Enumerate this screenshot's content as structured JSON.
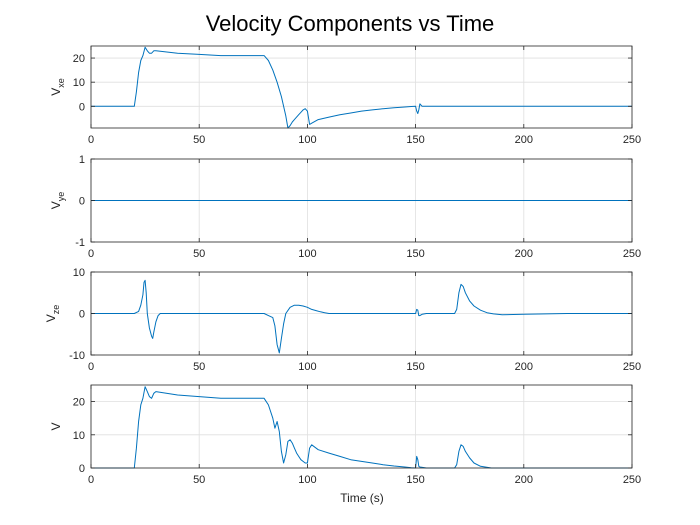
{
  "figure": {
    "title": "Velocity Components vs Time",
    "xlabel": "Time (s)"
  },
  "chart_data": [
    {
      "type": "line",
      "ylabel_main": "V",
      "ylabel_sub": "xe",
      "xlim": [
        0,
        250
      ],
      "ylim": [
        -9,
        25
      ],
      "xticks": [
        0,
        50,
        100,
        150,
        200,
        250
      ],
      "yticks": [
        0,
        10,
        20
      ],
      "grid": true,
      "color": "#0072BD",
      "series": [
        {
          "x": [
            0,
            20,
            21,
            22,
            23,
            24,
            25,
            26,
            27,
            28,
            29,
            30,
            40,
            50,
            60,
            70,
            75,
            80,
            82,
            84,
            86,
            88,
            90,
            91,
            92,
            93,
            94,
            95,
            96,
            97,
            98,
            99,
            100,
            101,
            102,
            105,
            110,
            115,
            120,
            125,
            130,
            135,
            140,
            145,
            148,
            150,
            150.5,
            151,
            151.5,
            152,
            153,
            155,
            160,
            180,
            200,
            220,
            250
          ],
          "y": [
            0,
            0,
            6,
            14,
            19,
            21,
            24.5,
            23,
            22,
            22,
            23,
            23,
            22,
            21.5,
            21,
            21,
            21,
            21,
            19,
            15,
            10,
            4,
            -4,
            -9,
            -8,
            -6.5,
            -5.5,
            -4.5,
            -3.5,
            -2.5,
            -1.5,
            -1,
            -2,
            -7.5,
            -7,
            -5.5,
            -4.5,
            -3.5,
            -2.8,
            -2,
            -1.5,
            -1,
            -0.6,
            -0.3,
            -0.1,
            0,
            -2,
            -3,
            -1.5,
            1,
            0,
            0,
            0,
            0,
            0,
            0,
            0
          ]
        }
      ]
    },
    {
      "type": "line",
      "ylabel_main": "V",
      "ylabel_sub": "ye",
      "xlim": [
        0,
        250
      ],
      "ylim": [
        -1,
        1
      ],
      "xticks": [
        0,
        50,
        100,
        150,
        200,
        250
      ],
      "yticks": [
        -1,
        0,
        1
      ],
      "grid": true,
      "color": "#0072BD",
      "series": [
        {
          "x": [
            0,
            250
          ],
          "y": [
            0,
            0
          ]
        }
      ]
    },
    {
      "type": "line",
      "ylabel_main": "V",
      "ylabel_sub": "ze",
      "xlim": [
        0,
        250
      ],
      "ylim": [
        -10,
        10
      ],
      "xticks": [
        0,
        50,
        100,
        150,
        200,
        250
      ],
      "yticks": [
        -10,
        0,
        10
      ],
      "grid": true,
      "color": "#0072BD",
      "series": [
        {
          "x": [
            0,
            20,
            22,
            23,
            24,
            24.5,
            25,
            25.5,
            26,
            27,
            28,
            28.5,
            29,
            30,
            31,
            32,
            35,
            80,
            82,
            84,
            85,
            86,
            87,
            88,
            89,
            90,
            92,
            94,
            96,
            98,
            100,
            102,
            104,
            106,
            108,
            110,
            150,
            150.5,
            151,
            151.5,
            152,
            153,
            155,
            168,
            169,
            170,
            171,
            172,
            173,
            175,
            177,
            180,
            183,
            186,
            190,
            200,
            220,
            250
          ],
          "y": [
            0,
            0,
            0.5,
            2,
            4.5,
            7.5,
            8,
            5,
            0,
            -3.5,
            -5.5,
            -6,
            -4.5,
            -2,
            -0.5,
            0,
            0,
            0,
            -0.5,
            -1,
            -3,
            -7.5,
            -9.5,
            -6,
            -2.5,
            0,
            1.5,
            2,
            2,
            1.8,
            1.5,
            1,
            0.7,
            0.4,
            0.2,
            0,
            0,
            1,
            0.8,
            -0.5,
            -0.5,
            -0.2,
            0,
            0,
            1,
            5,
            7,
            6.5,
            5,
            3,
            1.8,
            0.8,
            0.2,
            -0.1,
            -0.3,
            -0.2,
            0,
            0
          ]
        }
      ]
    },
    {
      "type": "line",
      "ylabel_main": "V",
      "ylabel_sub": "",
      "xlim": [
        0,
        250
      ],
      "ylim": [
        0,
        25
      ],
      "xticks": [
        0,
        50,
        100,
        150,
        200,
        250
      ],
      "yticks": [
        0,
        10,
        20
      ],
      "grid": true,
      "color": "#0072BD",
      "series": [
        {
          "x": [
            0,
            20,
            21,
            22,
            23,
            24,
            25,
            26,
            27,
            28,
            29,
            30,
            40,
            50,
            60,
            70,
            75,
            80,
            82,
            84,
            85,
            86,
            87,
            88,
            89,
            90,
            91,
            92,
            93,
            94,
            95,
            96,
            97,
            98,
            99,
            100,
            101,
            102,
            105,
            110,
            115,
            120,
            125,
            130,
            135,
            140,
            145,
            148,
            150,
            150.5,
            151,
            151.5,
            152,
            155,
            168,
            169,
            170,
            171,
            172,
            173,
            175,
            177,
            180,
            185,
            190,
            250
          ],
          "y": [
            0,
            0,
            6,
            14,
            19,
            21,
            24.5,
            23,
            21.5,
            21,
            22.5,
            23,
            22,
            21.5,
            21,
            21,
            21,
            21,
            19,
            15,
            12,
            14,
            11,
            5,
            1.5,
            4,
            8,
            8.5,
            7.5,
            6,
            4.5,
            3.5,
            2.5,
            2,
            1.5,
            1.5,
            6,
            7,
            5.5,
            4.5,
            3.5,
            2.5,
            2,
            1.5,
            1,
            0.6,
            0.3,
            0.1,
            0,
            3.5,
            2.5,
            0.5,
            0.3,
            0,
            0,
            1,
            5,
            7,
            6.5,
            5,
            3,
            1.5,
            0.5,
            0,
            0,
            0
          ]
        }
      ]
    }
  ]
}
